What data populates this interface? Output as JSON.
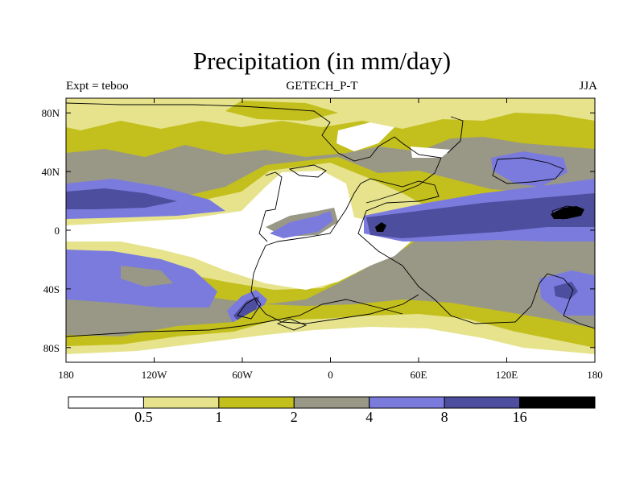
{
  "chart_data": {
    "type": "filled-contour-map",
    "title": "Precipitation (in mm/day)",
    "left_string": "Expt = teboo",
    "center_string": "GETECH_P-T",
    "right_string": "JJA",
    "x_ticks": [
      {
        "value": -180,
        "label": "180"
      },
      {
        "value": -120,
        "label": "120W"
      },
      {
        "value": -60,
        "label": "60W"
      },
      {
        "value": 0,
        "label": "0"
      },
      {
        "value": 60,
        "label": "60E"
      },
      {
        "value": 120,
        "label": "120E"
      },
      {
        "value": 180,
        "label": "180"
      }
    ],
    "y_ticks": [
      {
        "value": 80,
        "label": "80N"
      },
      {
        "value": 40,
        "label": "40N"
      },
      {
        "value": 0,
        "label": "0"
      },
      {
        "value": -40,
        "label": "40S"
      },
      {
        "value": -80,
        "label": "80S"
      }
    ],
    "xlim": [
      -180,
      180
    ],
    "ylim": [
      -90,
      90
    ],
    "levels": [
      0.5,
      1,
      2,
      4,
      8,
      16
    ],
    "level_labels": [
      "0.5",
      "1",
      "2",
      "4",
      "8",
      "16"
    ],
    "colors": [
      "#ffffff",
      "#e6e38c",
      "#c3bf1d",
      "#999886",
      "#7b7bde",
      "#4e4e9e",
      "#000000"
    ],
    "outline_color": "#000000"
  }
}
